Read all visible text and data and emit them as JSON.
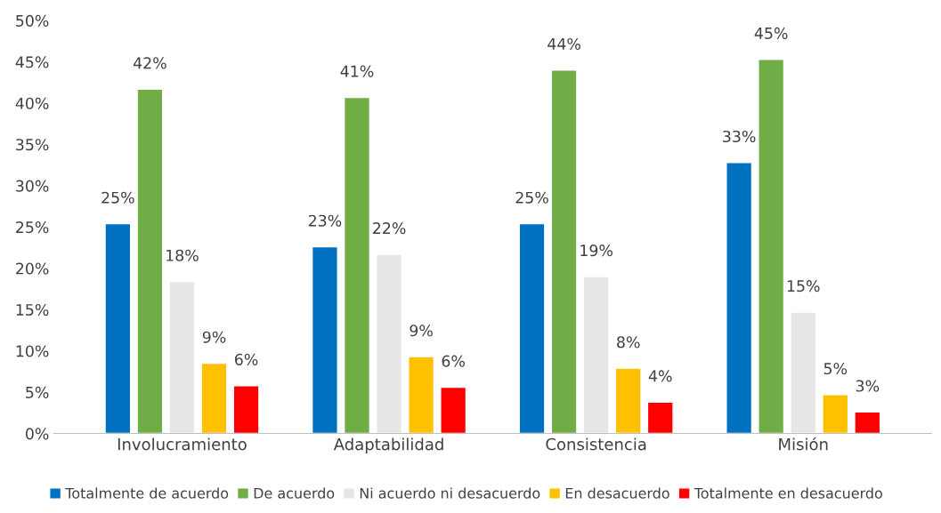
{
  "chart_data": {
    "type": "bar",
    "categories": [
      "Involucramiento",
      "Adaptabilidad",
      "Consistencia",
      "Misión"
    ],
    "series": [
      {
        "name": "Totalmente de acuerdo",
        "color": "#0070c0",
        "values": [
          25.4,
          22.6,
          25.4,
          32.8
        ],
        "value_labels": [
          "25%",
          "23%",
          "25%",
          "33%"
        ]
      },
      {
        "name": "De acuerdo",
        "color": "#70ad47",
        "values": [
          41.7,
          40.7,
          44.0,
          45.3
        ],
        "value_labels": [
          "42%",
          "41%",
          "44%",
          "45%"
        ]
      },
      {
        "name": "Ni acuerdo ni desacuerdo",
        "color": "#e7e6e6",
        "values": [
          18.4,
          21.7,
          19.0,
          14.7
        ],
        "value_labels": [
          "18%",
          "22%",
          "19%",
          "15%"
        ]
      },
      {
        "name": "En desacuerdo",
        "color": "#ffc000",
        "values": [
          8.5,
          9.3,
          7.9,
          4.7
        ],
        "value_labels": [
          "9%",
          "9%",
          "8%",
          "5%"
        ]
      },
      {
        "name": "Totalmente en desacuerdo",
        "color": "#ff0000",
        "values": [
          5.8,
          5.6,
          3.8,
          2.6
        ],
        "value_labels": [
          "6%",
          "6%",
          "4%",
          "3%"
        ]
      }
    ],
    "ylim": [
      0,
      50
    ],
    "yticks": [
      {
        "value": 0,
        "label": "0%"
      },
      {
        "value": 5,
        "label": "5%"
      },
      {
        "value": 10,
        "label": "10%"
      },
      {
        "value": 15,
        "label": "15%"
      },
      {
        "value": 20,
        "label": "20%"
      },
      {
        "value": 25,
        "label": "25%"
      },
      {
        "value": 30,
        "label": "30%"
      },
      {
        "value": 35,
        "label": "35%"
      },
      {
        "value": 40,
        "label": "40%"
      },
      {
        "value": 45,
        "label": "45%"
      },
      {
        "value": 50,
        "label": "50%"
      }
    ],
    "grid": false,
    "legend": "bottom"
  }
}
